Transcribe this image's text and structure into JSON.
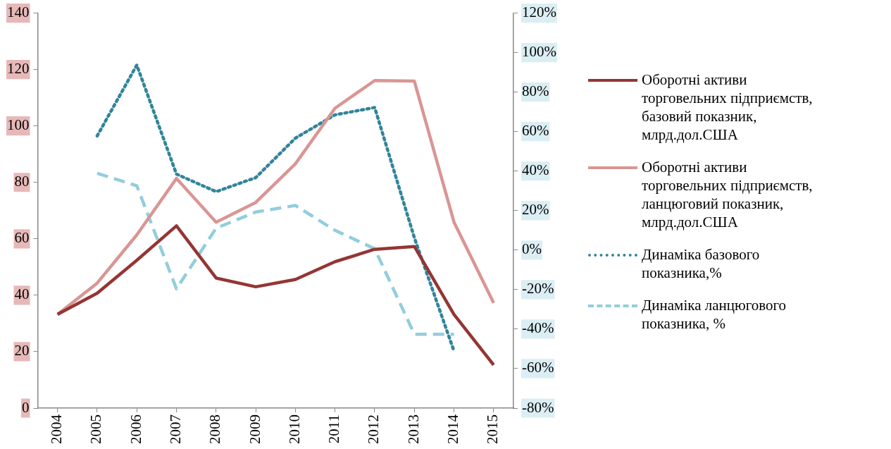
{
  "chart_data": {
    "type": "line",
    "categories": [
      "2004",
      "2005",
      "2006",
      "2007",
      "2008",
      "2009",
      "2010",
      "2011",
      "2012",
      "2013",
      "2014",
      "2015"
    ],
    "ylim": [
      0,
      140
    ],
    "yticks": [
      0,
      20,
      40,
      60,
      80,
      100,
      120,
      140
    ],
    "y2lim": [
      -80,
      120
    ],
    "y2ticks": [
      {
        "value": -80,
        "label": "-80%"
      },
      {
        "value": -60,
        "label": "-60%"
      },
      {
        "value": -40,
        "label": "-40%"
      },
      {
        "value": -20,
        "label": "-20%"
      },
      {
        "value": 0,
        "label": "0%"
      },
      {
        "value": 20,
        "label": "20%"
      },
      {
        "value": 40,
        "label": "40%"
      },
      {
        "value": 60,
        "label": "60%"
      },
      {
        "value": 80,
        "label": "80%"
      },
      {
        "value": 100,
        "label": "100%"
      },
      {
        "value": 120,
        "label": "120%"
      }
    ],
    "grid": false,
    "legend": "right",
    "marker": "none",
    "series": [
      {
        "name": "Оборотні активи торговельних підприємств, базовий показник, млрд.дол.США",
        "color": "#943634",
        "line_style": "solid",
        "values": [
          33.2,
          40.7,
          52.4,
          64.6,
          46.1,
          43.0,
          45.6,
          51.9,
          56.3,
          57.3,
          33.2,
          15.3
        ]
      },
      {
        "name": "Оборотні активи торговельних підприємств, ланцюговий показник, млрд.дол.США",
        "color": "#d99694",
        "line_style": "solid",
        "values": [
          33.2,
          44.3,
          61.4,
          81.4,
          65.9,
          72.9,
          86.6,
          106.3,
          116.1,
          115.9,
          65.9,
          37.3
        ]
      },
      {
        "name": "Динаміка базового показника,%",
        "color": "#31849b",
        "line_style": "dotted",
        "axis": "y2",
        "values": [
          null,
          57.8,
          93.7,
          38.5,
          29.6,
          36.7,
          56.7,
          68.5,
          72.2,
          6.3,
          -51.1,
          null
        ]
      },
      {
        "name": "Динаміка ланцюгового показника, %",
        "color": "#93cddd",
        "line_style": "dashed",
        "axis": "y2",
        "values": [
          null,
          38.9,
          32.6,
          -19.6,
          11.1,
          19.3,
          22.6,
          10.0,
          0.7,
          -42.6,
          -42.6,
          null
        ]
      }
    ]
  }
}
